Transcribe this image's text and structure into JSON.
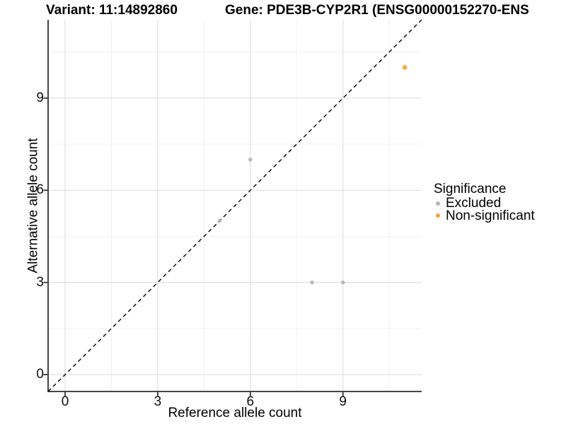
{
  "titles": {
    "variant": "Variant: 11:14892860",
    "gene": "Gene: PDE3B-CYP2R1 (ENSG00000152270-ENS"
  },
  "chart_data": {
    "type": "scatter",
    "xlabel": "Reference allele count",
    "ylabel": "Alternative allele count",
    "xlim": [
      -0.55,
      11.55
    ],
    "ylim": [
      -0.55,
      11.55
    ],
    "x_major_ticks": [
      0,
      3,
      6,
      9
    ],
    "y_major_ticks": [
      0,
      3,
      6,
      9
    ],
    "x_minor_gridlines": [
      1.5,
      4.5,
      7.5,
      10.5
    ],
    "y_minor_gridlines": [
      1.5,
      4.5,
      7.5,
      10.5
    ],
    "grid": "major and minor gridlines on white panel",
    "identity_line": {
      "type": "y=x",
      "linestyle": "dashed",
      "color": "#000000"
    },
    "series": [
      {
        "name": "Excluded",
        "color": "#B5B5B5",
        "point_radius": 2.8,
        "points": [
          [
            5,
            5
          ],
          [
            6,
            7
          ],
          [
            8,
            3
          ],
          [
            9,
            3
          ]
        ]
      },
      {
        "name": "Non-significant",
        "color": "#FAA43A",
        "point_radius": 3.3,
        "points": [
          [
            11,
            10
          ]
        ]
      }
    ],
    "legend": {
      "title": "Significance",
      "position": "right",
      "items": [
        {
          "label": "Excluded",
          "color": "#B5B5B5"
        },
        {
          "label": "Non-significant",
          "color": "#FAA43A"
        }
      ]
    }
  },
  "style_colors": {
    "grid_major": "#E2E2E2",
    "grid_minor": "#F0F0F0",
    "axis_line": "#454545",
    "tick_mark": "#333333",
    "excluded_gray": "#B5B5B5",
    "nonsignificant_orange": "#FAA43A"
  }
}
